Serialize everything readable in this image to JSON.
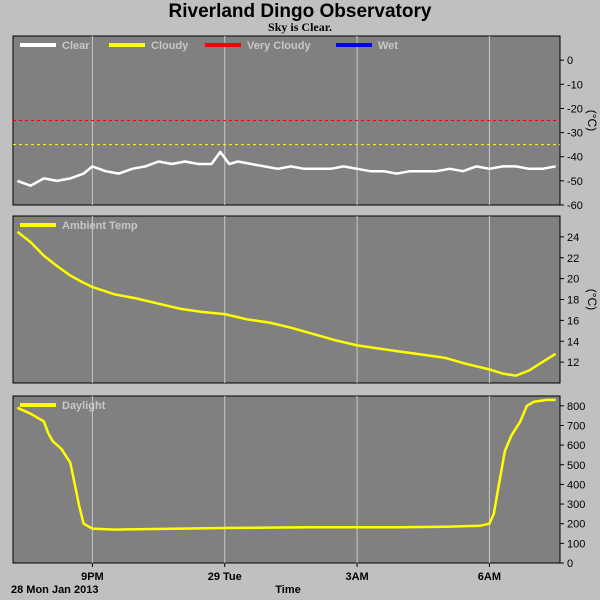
{
  "header": {
    "title": "Riverland Dingo Observatory",
    "subtitle": "Sky is Clear."
  },
  "footer": {
    "date_label": "28 Mon Jan 2013",
    "time_label": "Time"
  },
  "x_axis": {
    "tick_labels": [
      "9PM",
      "29 Tue",
      "3AM",
      "6AM"
    ],
    "tick_hours": [
      21,
      24,
      27,
      30
    ],
    "range_hours": [
      19.2,
      31.6
    ]
  },
  "colors": {
    "panel_bg": "#808080",
    "grid": "#c8c8c8",
    "clear": "#ffffff",
    "cloudy": "#ffff00",
    "very_cloudy": "#ff0000",
    "wet": "#0000ff",
    "line": "#ffff00"
  },
  "chart_data": [
    {
      "type": "line",
      "panel": "sky",
      "ylabel": "(°C)",
      "ylim": [
        -60,
        10
      ],
      "yticks": [
        0,
        -10,
        -20,
        -30,
        -40,
        -50,
        -60
      ],
      "legend": [
        {
          "name": "Clear",
          "color": "#ffffff"
        },
        {
          "name": "Cloudy",
          "color": "#ffff00"
        },
        {
          "name": "Very Cloudy",
          "color": "#ff0000"
        },
        {
          "name": "Wet",
          "color": "#0000ff"
        }
      ],
      "thresholds": [
        {
          "name": "Very Cloudy",
          "value": -25,
          "color": "#ff0000"
        },
        {
          "name": "Cloudy",
          "value": -35,
          "color": "#ffff00"
        }
      ],
      "series": [
        {
          "name": "Clear",
          "color": "#ffffff",
          "x": [
            19.3,
            19.6,
            19.9,
            20.2,
            20.5,
            20.8,
            21.0,
            21.3,
            21.6,
            21.9,
            22.2,
            22.5,
            22.8,
            23.1,
            23.4,
            23.7,
            23.9,
            24.1,
            24.3,
            24.6,
            24.9,
            25.2,
            25.5,
            25.8,
            26.1,
            26.4,
            26.7,
            27.0,
            27.3,
            27.6,
            27.9,
            28.2,
            28.5,
            28.8,
            29.1,
            29.4,
            29.7,
            30.0,
            30.3,
            30.6,
            30.9,
            31.2,
            31.5
          ],
          "y": [
            -50,
            -52,
            -49,
            -50,
            -49,
            -47,
            -44,
            -46,
            -47,
            -45,
            -44,
            -42,
            -43,
            -42,
            -43,
            -43,
            -38,
            -43,
            -42,
            -43,
            -44,
            -45,
            -44,
            -45,
            -45,
            -45,
            -44,
            -45,
            -46,
            -46,
            -47,
            -46,
            -46,
            -46,
            -45,
            -46,
            -44,
            -45,
            -44,
            -44,
            -45,
            -45,
            -44
          ]
        }
      ]
    },
    {
      "type": "line",
      "panel": "ambient",
      "ylabel": "(°C)",
      "ylim": [
        10,
        26
      ],
      "yticks": [
        12,
        14,
        16,
        18,
        20,
        22,
        24
      ],
      "legend": [
        {
          "name": "Ambient Temp",
          "color": "#ffff00"
        }
      ],
      "series": [
        {
          "name": "Ambient Temp",
          "color": "#ffff00",
          "x": [
            19.3,
            19.6,
            19.9,
            20.2,
            20.5,
            20.8,
            21.0,
            21.5,
            22.0,
            22.5,
            23.0,
            23.5,
            24.0,
            24.5,
            25.0,
            25.5,
            26.0,
            26.5,
            27.0,
            27.5,
            28.0,
            28.5,
            29.0,
            29.5,
            30.0,
            30.3,
            30.6,
            30.9,
            31.2,
            31.5
          ],
          "y": [
            24.5,
            23.5,
            22.2,
            21.2,
            20.3,
            19.6,
            19.2,
            18.5,
            18.1,
            17.6,
            17.1,
            16.8,
            16.6,
            16.1,
            15.8,
            15.3,
            14.7,
            14.1,
            13.6,
            13.3,
            13.0,
            12.7,
            12.4,
            11.8,
            11.3,
            10.9,
            10.7,
            11.2,
            12.0,
            12.8
          ]
        }
      ]
    },
    {
      "type": "line",
      "panel": "daylight",
      "ylabel": "",
      "ylim": [
        0,
        850
      ],
      "yticks": [
        0,
        100,
        200,
        300,
        400,
        500,
        600,
        700,
        800
      ],
      "legend": [
        {
          "name": "Daylight",
          "color": "#ffff00"
        }
      ],
      "series": [
        {
          "name": "Daylight",
          "color": "#ffff00",
          "x": [
            19.3,
            19.6,
            19.9,
            20.0,
            20.1,
            20.3,
            20.5,
            20.6,
            20.7,
            20.8,
            21.0,
            21.5,
            22.0,
            23.0,
            24.0,
            25.0,
            26.0,
            27.0,
            28.0,
            29.0,
            29.8,
            30.0,
            30.1,
            30.2,
            30.35,
            30.5,
            30.7,
            30.85,
            31.0,
            31.3,
            31.5
          ],
          "y": [
            790,
            760,
            720,
            660,
            620,
            580,
            510,
            400,
            290,
            200,
            175,
            170,
            172,
            175,
            178,
            180,
            182,
            182,
            182,
            184,
            190,
            200,
            250,
            380,
            570,
            650,
            720,
            800,
            820,
            830,
            830
          ]
        }
      ]
    }
  ]
}
